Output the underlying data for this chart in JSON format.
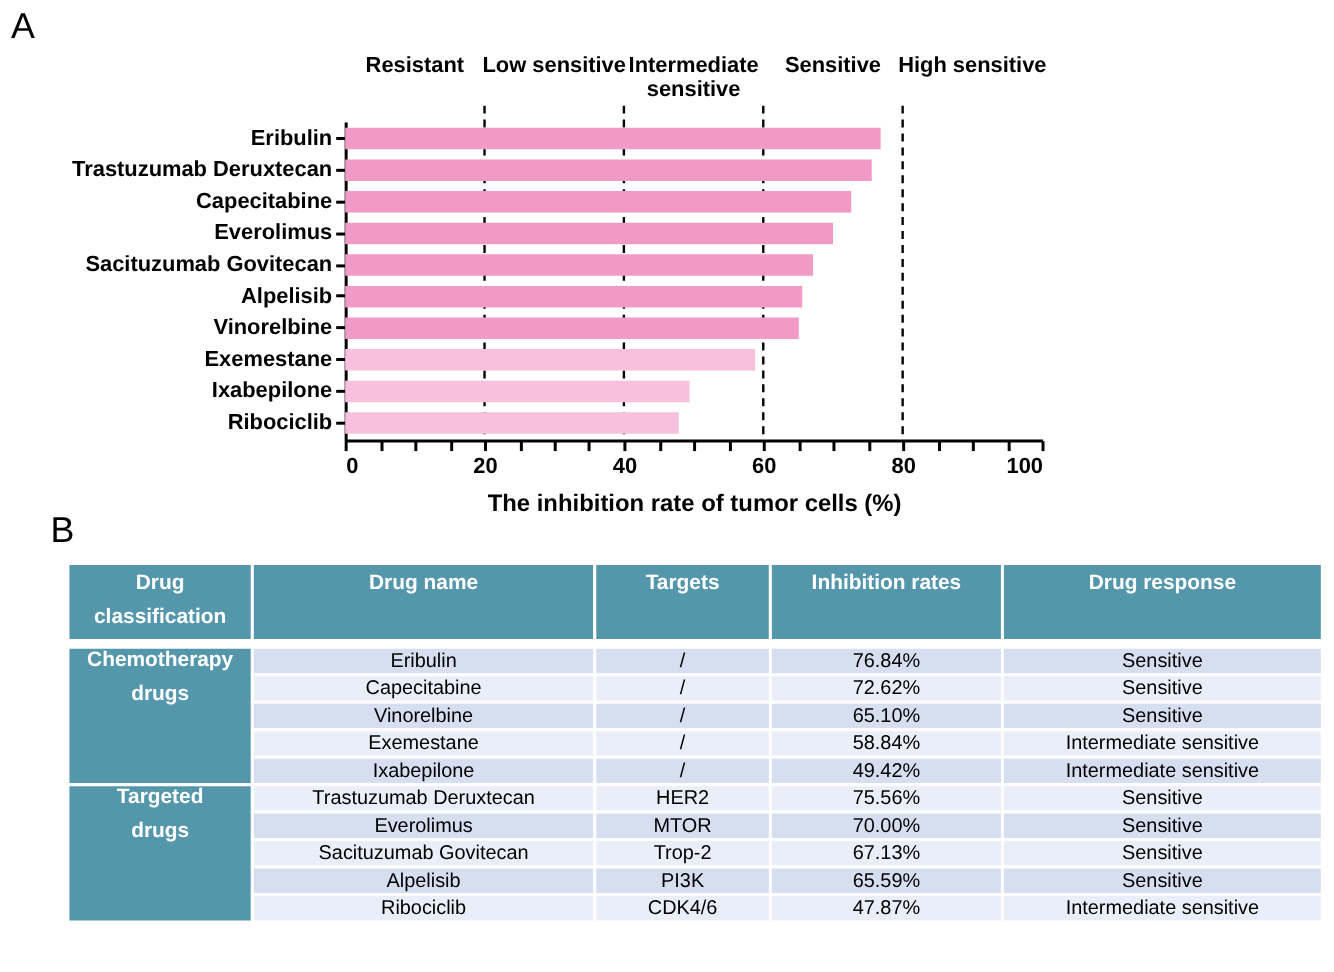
{
  "chart_data": [
    {
      "type": "bar",
      "orientation": "horizontal",
      "title": "A",
      "xlabel": "The inhibition rate of tumor cells (%)",
      "categories": [
        "Eribulin",
        "Trastuzumab Deruxtecan",
        "Capecitabine",
        "Everolimus",
        "Sacituzumab Govitecan",
        "Alpelisib",
        "Vinorelbine",
        "Exemestane",
        "Ixabepilone",
        "Ribociclib"
      ],
      "values": [
        76.84,
        75.56,
        72.62,
        70.0,
        67.13,
        65.59,
        65.1,
        58.84,
        49.42,
        47.87
      ],
      "colors": [
        "#f29ac6",
        "#f29ac6",
        "#f29ac6",
        "#f29ac6",
        "#f29ac6",
        "#f29ac6",
        "#f29ac6",
        "#f9c0de",
        "#f9c0de",
        "#f9c0de"
      ],
      "xlim": [
        0,
        100
      ],
      "xticks": [
        0,
        {
          "value": 5,
          "label": null
        },
        {
          "value": 10,
          "label": null
        },
        {
          "value": 15,
          "label": null
        },
        20,
        {
          "value": 25,
          "label": null
        },
        {
          "value": 30,
          "label": null
        },
        {
          "value": 35,
          "label": null
        },
        40,
        {
          "value": 45,
          "label": null
        },
        {
          "value": 50,
          "label": null
        },
        {
          "value": 55,
          "label": null
        },
        60,
        {
          "value": 65,
          "label": null
        },
        {
          "value": 70,
          "label": null
        },
        {
          "value": 75,
          "label": null
        },
        80,
        {
          "value": 85,
          "label": null
        },
        {
          "value": 90,
          "label": null
        },
        {
          "value": 95,
          "label": null
        },
        100
      ],
      "grid": false,
      "ref_lines": [
        {
          "axis": "x",
          "value": 20,
          "line_style": "dashed",
          "color": "#000000"
        },
        {
          "axis": "x",
          "value": 40,
          "line_style": "dashed",
          "color": "#000000"
        },
        {
          "axis": "x",
          "value": 60,
          "line_style": "dashed",
          "color": "#000000"
        },
        {
          "axis": "x",
          "value": 80,
          "line_style": "dashed",
          "color": "#000000"
        }
      ],
      "annotations": [
        "Resistant",
        "Low sensitive",
        "Intermediate sensitive",
        "Sensitive",
        "High sensitive"
      ]
    },
    {
      "type": "other",
      "title": "B",
      "annotations": [
        "Drug classification",
        "Drug name",
        "Targets",
        "Inhibition rates",
        "Drug response",
        "Chemotherapy drugs",
        "Targeted drugs",
        "Eribulin",
        "/",
        "76.84%",
        "Sensitive",
        "Capecitabine",
        "/",
        "72.62%",
        "Sensitive",
        "Vinorelbine",
        "/",
        "65.10%",
        "Sensitive",
        "Exemestane",
        "/",
        "58.84%",
        "Intermediate sensitive",
        "Ixabepilone",
        "/",
        "49.42%",
        "Intermediate sensitive",
        "Trastuzumab Deruxtecan",
        "HER2",
        "75.56%",
        "Sensitive",
        "Everolimus",
        "MTOR",
        "70.00%",
        "Sensitive",
        "Sacituzumab Govitecan",
        "Trop-2",
        "67.13%",
        "Sensitive",
        "Alpelisib",
        "PI3K",
        "65.59%",
        "Sensitive",
        "Ribociclib",
        "CDK4/6",
        "47.87%",
        "Intermediate sensitive"
      ]
    }
  ]
}
